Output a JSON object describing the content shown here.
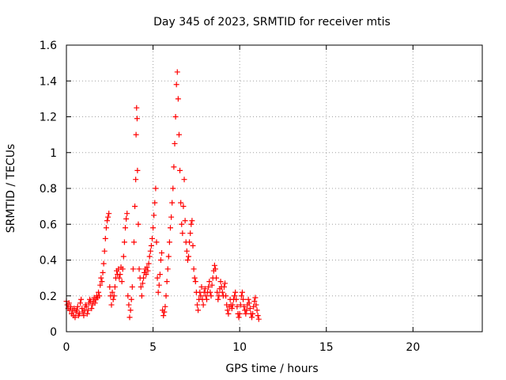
{
  "chart_data": {
    "type": "scatter",
    "title": "Day 345 of 2023, SRMTID for receiver mtis",
    "xlabel": "GPS time / hours",
    "ylabel": "SRMTID / TECUs",
    "xlim": [
      0,
      24
    ],
    "ylim": [
      0,
      1.6
    ],
    "xticks": [
      0,
      5,
      10,
      15,
      20
    ],
    "yticks": [
      0,
      0.2,
      0.4,
      0.6,
      0.8,
      1,
      1.2,
      1.4,
      1.6
    ],
    "xtick_labels": [
      "0",
      "5",
      "10",
      "15",
      "20"
    ],
    "ytick_labels": [
      "0",
      "0.2",
      "0.4",
      "0.6",
      "0.8",
      "1",
      "1.2",
      "1.4",
      "1.6"
    ],
    "grid": true,
    "marker": "+",
    "color": "#ff0000",
    "series": [
      {
        "name": "SRMTID",
        "points": [
          [
            0.0,
            0.17
          ],
          [
            0.05,
            0.15
          ],
          [
            0.1,
            0.13
          ],
          [
            0.15,
            0.16
          ],
          [
            0.2,
            0.12
          ],
          [
            0.25,
            0.14
          ],
          [
            0.3,
            0.1
          ],
          [
            0.35,
            0.12
          ],
          [
            0.4,
            0.09
          ],
          [
            0.45,
            0.13
          ],
          [
            0.5,
            0.08
          ],
          [
            0.55,
            0.11
          ],
          [
            0.6,
            0.12
          ],
          [
            0.65,
            0.14
          ],
          [
            0.7,
            0.09
          ],
          [
            0.75,
            0.1
          ],
          [
            0.8,
            0.16
          ],
          [
            0.85,
            0.18
          ],
          [
            0.9,
            0.13
          ],
          [
            0.95,
            0.11
          ],
          [
            1.0,
            0.09
          ],
          [
            1.05,
            0.12
          ],
          [
            1.1,
            0.15
          ],
          [
            1.15,
            0.14
          ],
          [
            1.2,
            0.1
          ],
          [
            1.25,
            0.12
          ],
          [
            1.3,
            0.16
          ],
          [
            1.35,
            0.18
          ],
          [
            1.4,
            0.17
          ],
          [
            1.45,
            0.13
          ],
          [
            1.5,
            0.15
          ],
          [
            1.55,
            0.17
          ],
          [
            1.6,
            0.19
          ],
          [
            1.65,
            0.16
          ],
          [
            1.7,
            0.18
          ],
          [
            1.75,
            0.2
          ],
          [
            1.8,
            0.19
          ],
          [
            1.85,
            0.22
          ],
          [
            1.9,
            0.2
          ],
          [
            1.95,
            0.26
          ],
          [
            2.0,
            0.3
          ],
          [
            2.05,
            0.28
          ],
          [
            2.1,
            0.33
          ],
          [
            2.15,
            0.38
          ],
          [
            2.2,
            0.45
          ],
          [
            2.25,
            0.52
          ],
          [
            2.3,
            0.58
          ],
          [
            2.35,
            0.62
          ],
          [
            2.4,
            0.64
          ],
          [
            2.45,
            0.66
          ],
          [
            2.5,
            0.25
          ],
          [
            2.55,
            0.2
          ],
          [
            2.6,
            0.15
          ],
          [
            2.65,
            0.22
          ],
          [
            2.7,
            0.18
          ],
          [
            2.75,
            0.2
          ],
          [
            2.8,
            0.25
          ],
          [
            2.85,
            0.3
          ],
          [
            2.9,
            0.34
          ],
          [
            2.95,
            0.32
          ],
          [
            3.0,
            0.35
          ],
          [
            3.05,
            0.3
          ],
          [
            3.1,
            0.32
          ],
          [
            3.15,
            0.36
          ],
          [
            3.2,
            0.28
          ],
          [
            3.25,
            0.35
          ],
          [
            3.3,
            0.42
          ],
          [
            3.35,
            0.5
          ],
          [
            3.4,
            0.58
          ],
          [
            3.45,
            0.63
          ],
          [
            3.5,
            0.66
          ],
          [
            3.55,
            0.2
          ],
          [
            3.6,
            0.15
          ],
          [
            3.65,
            0.08
          ],
          [
            3.7,
            0.12
          ],
          [
            3.75,
            0.18
          ],
          [
            3.8,
            0.25
          ],
          [
            3.85,
            0.35
          ],
          [
            3.9,
            0.5
          ],
          [
            3.95,
            0.7
          ],
          [
            4.0,
            0.85
          ],
          [
            4.02,
            1.1
          ],
          [
            4.05,
            1.25
          ],
          [
            4.08,
            1.19
          ],
          [
            4.1,
            0.9
          ],
          [
            4.15,
            0.6
          ],
          [
            4.2,
            0.35
          ],
          [
            4.25,
            0.3
          ],
          [
            4.3,
            0.25
          ],
          [
            4.35,
            0.2
          ],
          [
            4.4,
            0.27
          ],
          [
            4.45,
            0.3
          ],
          [
            4.5,
            0.33
          ],
          [
            4.55,
            0.35
          ],
          [
            4.6,
            0.32
          ],
          [
            4.65,
            0.36
          ],
          [
            4.7,
            0.34
          ],
          [
            4.75,
            0.38
          ],
          [
            4.8,
            0.42
          ],
          [
            4.85,
            0.45
          ],
          [
            4.9,
            0.48
          ],
          [
            4.95,
            0.52
          ],
          [
            5.0,
            0.58
          ],
          [
            5.05,
            0.65
          ],
          [
            5.1,
            0.72
          ],
          [
            5.15,
            0.8
          ],
          [
            5.2,
            0.5
          ],
          [
            5.25,
            0.3
          ],
          [
            5.3,
            0.22
          ],
          [
            5.35,
            0.26
          ],
          [
            5.4,
            0.32
          ],
          [
            5.45,
            0.4
          ],
          [
            5.5,
            0.44
          ],
          [
            5.55,
            0.12
          ],
          [
            5.6,
            0.09
          ],
          [
            5.65,
            0.11
          ],
          [
            5.7,
            0.14
          ],
          [
            5.75,
            0.2
          ],
          [
            5.8,
            0.28
          ],
          [
            5.85,
            0.35
          ],
          [
            5.9,
            0.42
          ],
          [
            5.95,
            0.5
          ],
          [
            6.0,
            0.58
          ],
          [
            6.05,
            0.64
          ],
          [
            6.1,
            0.72
          ],
          [
            6.15,
            0.8
          ],
          [
            6.2,
            0.92
          ],
          [
            6.25,
            1.05
          ],
          [
            6.3,
            1.2
          ],
          [
            6.35,
            1.38
          ],
          [
            6.4,
            1.45
          ],
          [
            6.45,
            1.3
          ],
          [
            6.5,
            1.1
          ],
          [
            6.55,
            0.9
          ],
          [
            6.6,
            0.72
          ],
          [
            6.65,
            0.6
          ],
          [
            6.7,
            0.55
          ],
          [
            6.75,
            0.7
          ],
          [
            6.8,
            0.85
          ],
          [
            6.85,
            0.62
          ],
          [
            6.9,
            0.5
          ],
          [
            6.95,
            0.45
          ],
          [
            7.0,
            0.4
          ],
          [
            7.05,
            0.42
          ],
          [
            7.1,
            0.5
          ],
          [
            7.15,
            0.55
          ],
          [
            7.2,
            0.6
          ],
          [
            7.25,
            0.62
          ],
          [
            7.3,
            0.48
          ],
          [
            7.35,
            0.35
          ],
          [
            7.4,
            0.3
          ],
          [
            7.45,
            0.28
          ],
          [
            7.5,
            0.22
          ],
          [
            7.55,
            0.15
          ],
          [
            7.6,
            0.12
          ],
          [
            7.65,
            0.18
          ],
          [
            7.7,
            0.22
          ],
          [
            7.75,
            0.2
          ],
          [
            7.8,
            0.25
          ],
          [
            7.85,
            0.18
          ],
          [
            7.9,
            0.15
          ],
          [
            7.95,
            0.22
          ],
          [
            8.0,
            0.24
          ],
          [
            8.05,
            0.2
          ],
          [
            8.1,
            0.18
          ],
          [
            8.15,
            0.22
          ],
          [
            8.2,
            0.25
          ],
          [
            8.25,
            0.28
          ],
          [
            8.3,
            0.22
          ],
          [
            8.35,
            0.2
          ],
          [
            8.4,
            0.26
          ],
          [
            8.45,
            0.3
          ],
          [
            8.5,
            0.34
          ],
          [
            8.55,
            0.37
          ],
          [
            8.6,
            0.35
          ],
          [
            8.65,
            0.3
          ],
          [
            8.7,
            0.22
          ],
          [
            8.75,
            0.18
          ],
          [
            8.8,
            0.2
          ],
          [
            8.85,
            0.24
          ],
          [
            8.9,
            0.28
          ],
          [
            8.95,
            0.25
          ],
          [
            9.0,
            0.22
          ],
          [
            9.05,
            0.2
          ],
          [
            9.1,
            0.25
          ],
          [
            9.15,
            0.27
          ],
          [
            9.2,
            0.2
          ],
          [
            9.25,
            0.15
          ],
          [
            9.3,
            0.12
          ],
          [
            9.35,
            0.1
          ],
          [
            9.4,
            0.14
          ],
          [
            9.45,
            0.18
          ],
          [
            9.5,
            0.15
          ],
          [
            9.55,
            0.13
          ],
          [
            9.6,
            0.15
          ],
          [
            9.65,
            0.18
          ],
          [
            9.7,
            0.2
          ],
          [
            9.75,
            0.22
          ],
          [
            9.8,
            0.18
          ],
          [
            9.85,
            0.14
          ],
          [
            9.9,
            0.1
          ],
          [
            9.95,
            0.08
          ],
          [
            10.0,
            0.1
          ],
          [
            10.05,
            0.15
          ],
          [
            10.1,
            0.2
          ],
          [
            10.15,
            0.22
          ],
          [
            10.2,
            0.18
          ],
          [
            10.25,
            0.14
          ],
          [
            10.3,
            0.12
          ],
          [
            10.35,
            0.1
          ],
          [
            10.4,
            0.12
          ],
          [
            10.45,
            0.15
          ],
          [
            10.5,
            0.18
          ],
          [
            10.55,
            0.16
          ],
          [
            10.6,
            0.13
          ],
          [
            10.65,
            0.1
          ],
          [
            10.7,
            0.08
          ],
          [
            10.75,
            0.1
          ],
          [
            10.8,
            0.14
          ],
          [
            10.85,
            0.17
          ],
          [
            10.9,
            0.19
          ],
          [
            10.95,
            0.15
          ],
          [
            11.0,
            0.12
          ],
          [
            11.05,
            0.09
          ],
          [
            11.1,
            0.07
          ]
        ]
      }
    ]
  }
}
